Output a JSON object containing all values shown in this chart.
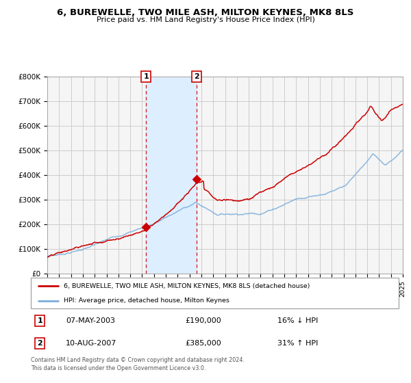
{
  "title": "6, BUREWELLE, TWO MILE ASH, MILTON KEYNES, MK8 8LS",
  "subtitle": "Price paid vs. HM Land Registry's House Price Index (HPI)",
  "legend_line1": "6, BUREWELLE, TWO MILE ASH, MILTON KEYNES, MK8 8LS (detached house)",
  "legend_line2": "HPI: Average price, detached house, Milton Keynes",
  "table_row1": [
    "1",
    "07-MAY-2003",
    "£190,000",
    "16% ↓ HPI"
  ],
  "table_row2": [
    "2",
    "10-AUG-2007",
    "£385,000",
    "31% ↑ HPI"
  ],
  "footer": "Contains HM Land Registry data © Crown copyright and database right 2024.\nThis data is licensed under the Open Government Licence v3.0.",
  "sale1_year": 2003.35,
  "sale1_price": 190000,
  "sale2_year": 2007.6,
  "sale2_price": 385000,
  "highlight_start": 2003.35,
  "highlight_end": 2007.6,
  "hpi_color": "#7aaddb",
  "price_color": "#cc0000",
  "highlight_color": "#ddeeff",
  "background_color": "#f5f5f5",
  "grid_color": "#cccccc",
  "ylim": [
    0,
    800000
  ],
  "xlim_start": 1995,
  "xlim_end": 2025
}
